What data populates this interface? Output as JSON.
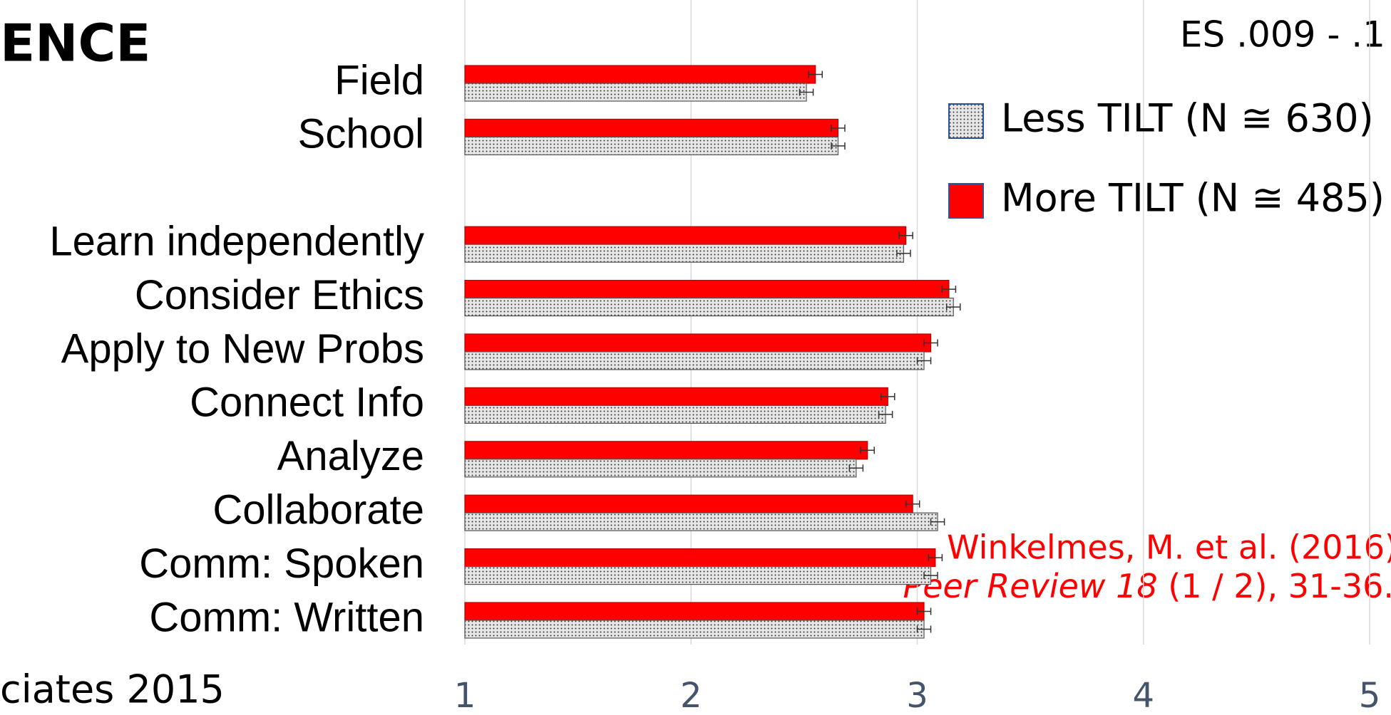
{
  "chart_data": {
    "type": "hbar",
    "title": "ENCE",
    "footer": "ciates 2015",
    "effect_size": "ES .009 - .1",
    "citation_line1": "Winkelmes, M. et al. (2016)",
    "citation_italic": "Peer Review 18",
    "citation_rest": " (1 / 2), 31-36.",
    "categories": [
      "Field",
      "School",
      null,
      "Learn independently",
      "Consider Ethics",
      "Apply to New Probs",
      "Connect Info",
      "Analyze",
      "Collaborate",
      "Comm: Spoken",
      "Comm: Written"
    ],
    "series": [
      {
        "name": "Less TILT (N ≅ 630)",
        "color": "#d9d9d9",
        "pattern": "dots",
        "values": [
          2.51,
          2.65,
          null,
          2.94,
          3.16,
          3.03,
          2.86,
          2.73,
          3.09,
          3.06,
          3.03
        ],
        "errors": [
          0.03,
          0.03,
          null,
          0.03,
          0.03,
          0.03,
          0.03,
          0.03,
          0.03,
          0.03,
          0.03
        ]
      },
      {
        "name": "More TILT (N ≅ 485)",
        "color": "#ff0000",
        "values": [
          2.55,
          2.65,
          null,
          2.95,
          3.14,
          3.06,
          2.87,
          2.78,
          2.98,
          3.08,
          3.03
        ],
        "errors": [
          0.03,
          0.03,
          null,
          0.03,
          0.03,
          0.03,
          0.03,
          0.03,
          0.03,
          0.03,
          0.03
        ]
      }
    ],
    "xlim": [
      1,
      5
    ],
    "xticks": [
      1,
      2,
      3,
      4,
      5
    ],
    "grid": true,
    "legend": "top-right"
  }
}
